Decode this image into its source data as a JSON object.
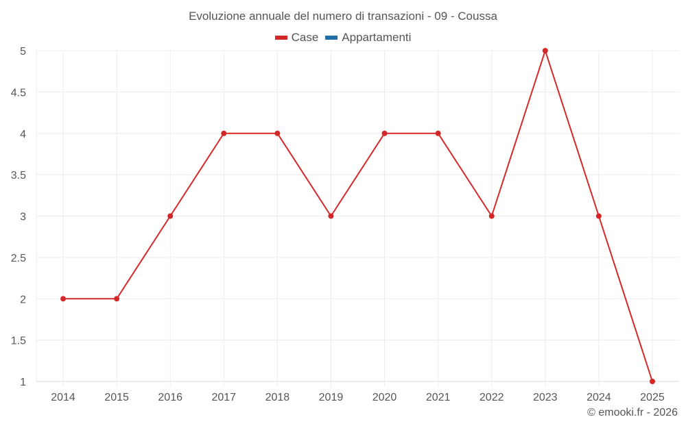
{
  "chart_data": {
    "type": "line",
    "title": "Evoluzione annuale del numero di transazioni - 09 - Coussa",
    "xlabel": "",
    "ylabel": "",
    "categories": [
      "2014",
      "2015",
      "2016",
      "2017",
      "2018",
      "2019",
      "2020",
      "2021",
      "2022",
      "2023",
      "2024",
      "2025"
    ],
    "series": [
      {
        "name": "Case",
        "color": "#d62728",
        "values": [
          2,
          2,
          3,
          4,
          4,
          3,
          4,
          4,
          3,
          5,
          3,
          1
        ]
      },
      {
        "name": "Appartamenti",
        "color": "#1f6fa8",
        "values": []
      }
    ],
    "ylim": [
      1,
      5
    ],
    "yticks": [
      "1",
      "1.5",
      "2",
      "2.5",
      "3",
      "3.5",
      "4",
      "4.5",
      "5"
    ],
    "grid": true,
    "legend_position": "top"
  },
  "legend": {
    "items": [
      {
        "label": "Case",
        "color": "#d62728"
      },
      {
        "label": "Appartamenti",
        "color": "#1f6fa8"
      }
    ]
  },
  "credit": "© emooki.fr - 2026"
}
